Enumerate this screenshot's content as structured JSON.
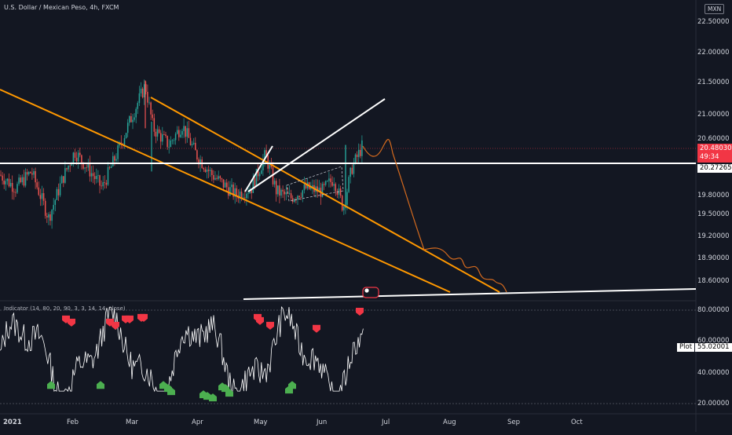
{
  "header": {
    "symbol_title": "U.S. Dollar / Mexican Peso, 4h, FXCM",
    "currency": "MXN"
  },
  "price_axis": {
    "labels": [
      "22.50000",
      "22.00000",
      "21.50000",
      "21.00000",
      "20.60000",
      "19.80000",
      "19.50000",
      "19.20000",
      "18.90000",
      "18.60000"
    ],
    "last_price": "20.48030",
    "countdown": "49:34",
    "horizontal_line_price": "20.27265"
  },
  "indicator": {
    "title": "Indicator (14, 80, 20, 90, 3, 3, 14, 14, close)",
    "axis_labels": [
      "80.00000",
      "60.00000",
      "40.00000",
      "20.00000"
    ],
    "plot_name": "Plot",
    "plot_value": "55.02001"
  },
  "time_axis": {
    "labels": [
      "2021",
      "Feb",
      "Mar",
      "Apr",
      "May",
      "Jun",
      "Jul",
      "Aug",
      "Sep",
      "Oct"
    ]
  },
  "colors": {
    "background": "#131722",
    "up": "#26a69a",
    "down": "#ef5350",
    "trendline_orange": "#ff9800",
    "projection": "#d2691e",
    "white_lines": "#ffffff",
    "signal_red": "#f23645",
    "signal_green": "#4caf50",
    "last_price_tag": "#f23645"
  },
  "chart_data": {
    "type": "line",
    "title": "U.S. Dollar / Mexican Peso, 4h, FXCM",
    "y_unit": "MXN",
    "series": [
      {
        "name": "",
        "x": [
          "2021-01",
          "2021-02",
          "2021-03",
          "2021-04",
          "2021-05",
          "2021-06"
        ],
        "values": [
          20.05,
          20.45,
          21.2,
          20.3,
          19.95,
          20.48
        ]
      }
    ],
    "ylim": [
      18.4,
      22.6
    ],
    "indicator_ylim": [
      15,
      85
    ]
  }
}
